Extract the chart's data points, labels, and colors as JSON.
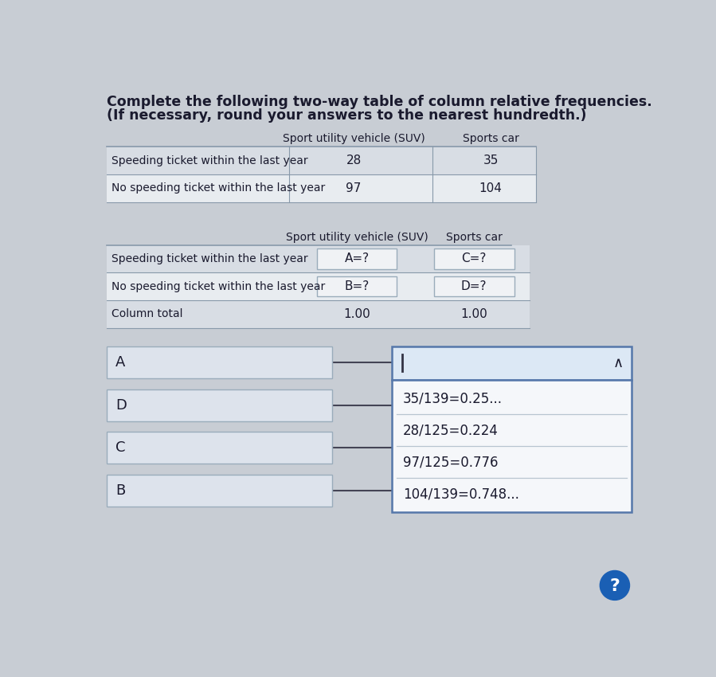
{
  "title_line1": "Complete the following two-way table of column relative frequencies.",
  "title_line2": "(If necessary, round your answers to the nearest hundredth.)",
  "table1_rows": [
    [
      "Speeding ticket within the last year",
      "28",
      "35"
    ],
    [
      "No speeding ticket within the last year",
      "97",
      "104"
    ]
  ],
  "table2_rows": [
    [
      "Speeding ticket within the last year",
      "A=?",
      "C=?"
    ],
    [
      "No speeding ticket within the last year",
      "B=?",
      "D=?"
    ],
    [
      "Column total",
      "1.00",
      "1.00"
    ]
  ],
  "dropdown_labels": [
    "A",
    "D",
    "C",
    "B"
  ],
  "dropdown_items": [
    "35/139=0.25...",
    "28/125=0.224",
    "97/125=0.776",
    "104/139=0.748..."
  ],
  "bg_color": "#c8cdd4",
  "table_row_light": "#d8dde4",
  "table_row_white": "#e8ecf0",
  "input_box_bg": "#f0f2f5",
  "input_box_border": "#9aacbb",
  "dropdown_top_bg": "#dce8f5",
  "dropdown_top_border": "#5577aa",
  "dropdown_list_bg": "#f5f7fa",
  "dropdown_list_border": "#5577aa",
  "left_box_bg": "#dde3ec",
  "left_box_border": "#9aacbb",
  "text_dark": "#1a1a2e",
  "text_medium": "#2a2a3e",
  "separator_color": "#b8c5d0"
}
